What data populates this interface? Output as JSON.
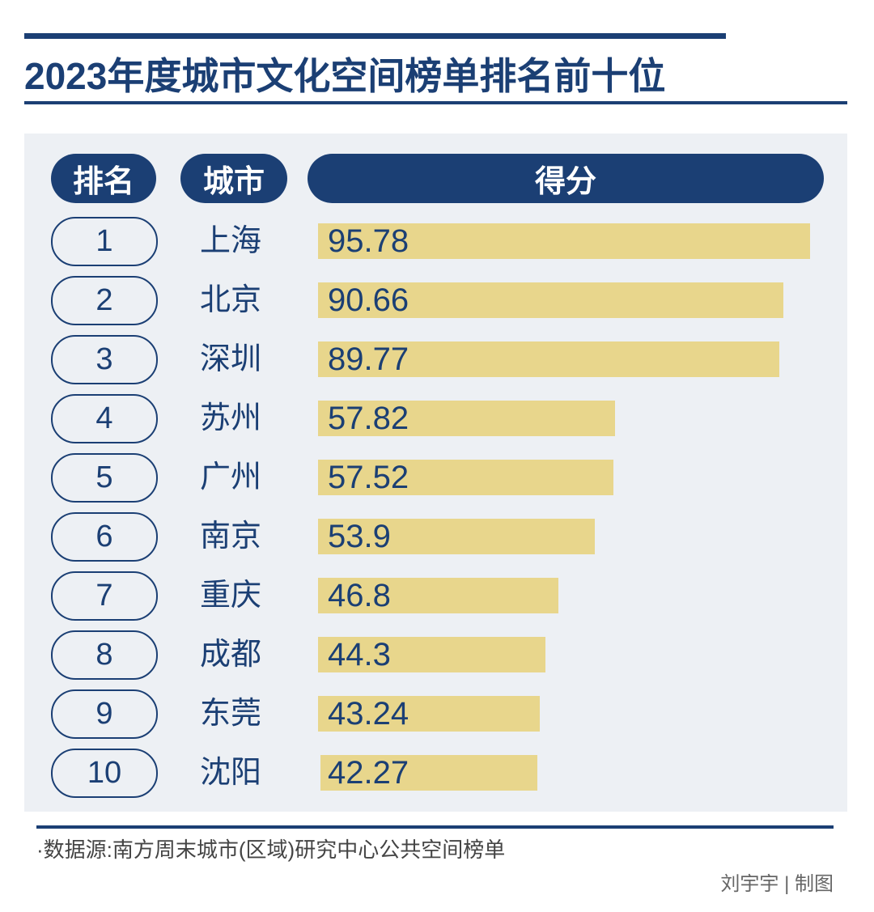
{
  "title": "2023年度城市文化空间榜单排名前十位",
  "headers": {
    "rank": "排名",
    "city": "城市",
    "score": "得分"
  },
  "colors": {
    "navy": "#1b3f74",
    "bar": "#e8d68c",
    "panel": "#edf0f4"
  },
  "chart_data": {
    "type": "bar",
    "orientation": "horizontal",
    "title": "2023年度城市文化空间榜单排名前十位",
    "ranks": [
      "1",
      "2",
      "3",
      "4",
      "5",
      "6",
      "7",
      "8",
      "9",
      "10"
    ],
    "categories": [
      "上海",
      "北京",
      "深圳",
      "苏州",
      "广州",
      "南京",
      "重庆",
      "成都",
      "东莞",
      "沈阳"
    ],
    "values": [
      95.78,
      90.66,
      89.77,
      57.82,
      57.52,
      53.9,
      46.8,
      44.3,
      43.24,
      42.27
    ],
    "value_labels": [
      "95.78",
      "90.66",
      "89.77",
      "57.82",
      "57.52",
      "53.9",
      "46.8",
      "44.3",
      "43.24",
      "42.27"
    ],
    "xlim": [
      0,
      100
    ],
    "grid": false
  },
  "footer": {
    "source": "·数据源:南方周末城市(区域)研究中心公共空间榜单",
    "credit": "刘宇宇 | 制图"
  }
}
